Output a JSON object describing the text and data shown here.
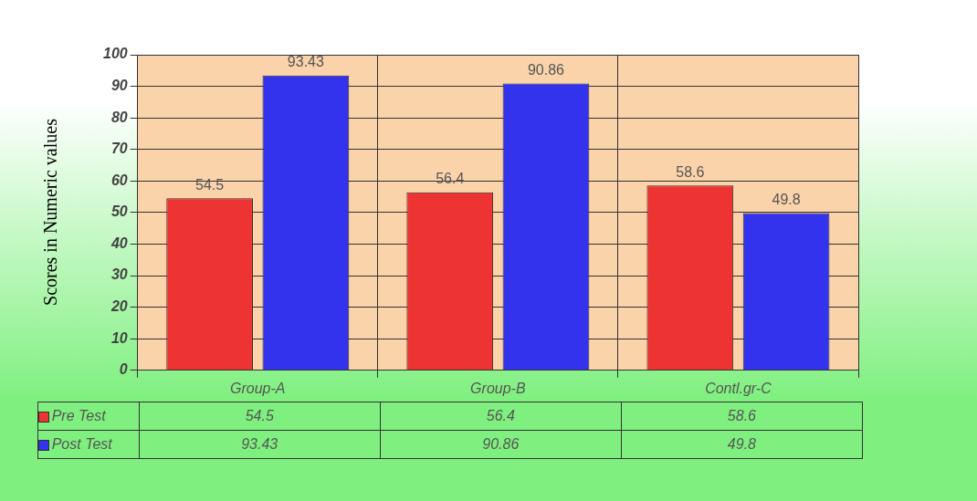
{
  "chart_data": {
    "type": "bar",
    "ylabel": "Scores in Numeric values",
    "categories": [
      "Group-A",
      "Group-B",
      "Contl.gr-C"
    ],
    "series": [
      {
        "name": "Pre Test",
        "color": "#ee3333",
        "values": [
          54.5,
          56.4,
          58.6
        ],
        "value_labels": [
          "54.5",
          "56.4",
          "58.6"
        ]
      },
      {
        "name": "Post Test",
        "color": "#3333ee",
        "values": [
          93.43,
          90.86,
          49.8
        ],
        "value_labels": [
          "93.43",
          "90.86",
          "49.8"
        ]
      }
    ],
    "ylim": [
      0,
      100
    ],
    "yticks": [
      0,
      10,
      20,
      30,
      40,
      50,
      60,
      70,
      80,
      90,
      100
    ],
    "grid": true,
    "legend": "bottom left"
  }
}
